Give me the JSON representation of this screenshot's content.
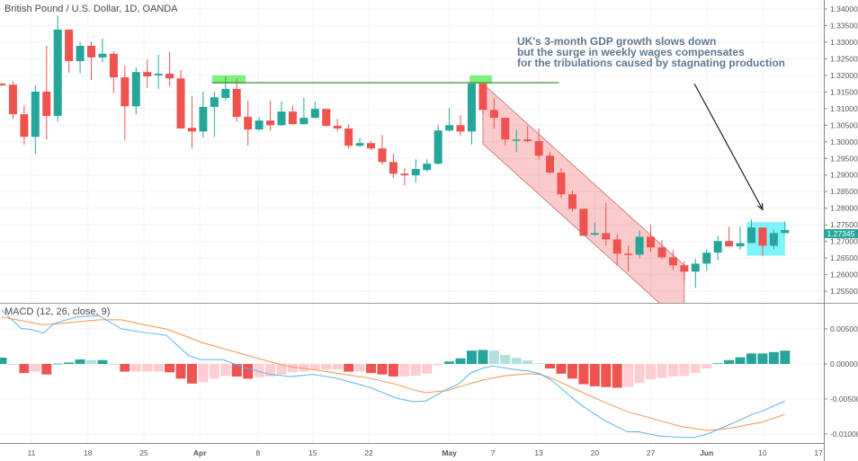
{
  "header": {
    "title": "British Pound / U.S. Dollar, 1D, OANDA"
  },
  "annotation_text": [
    "UK's 3-month GDP growth slows down",
    "but the surge in weekly wages compensates",
    "for the tribulations caused by stagnating production"
  ],
  "colors": {
    "up": "#26a69a",
    "down": "#ef5350",
    "up_light": "#b2dfdb",
    "down_light": "#ffcdd2",
    "macd": "#5fb2ea",
    "signal": "#f5924e",
    "grid": "#f0f3fa",
    "resistance": "#4a8f3a",
    "highlight_green": "#7cf27c",
    "highlight_cyan": "#7ff3fa",
    "channel": "#ef5350"
  },
  "chart_data": [
    {
      "type": "candlestick",
      "title": "British Pound / U.S. Dollar, 1D, OANDA",
      "ylim": [
        1.2515,
        1.3427
      ],
      "price_ticks": [
        "1.34000",
        "1.33500",
        "1.33000",
        "1.32500",
        "1.32000",
        "1.31500",
        "1.31000",
        "1.30500",
        "1.30000",
        "1.29500",
        "1.29000",
        "1.28500",
        "1.28000",
        "1.27500",
        "1.27000",
        "1.26500",
        "1.26000",
        "1.25500"
      ],
      "last_price": "1.27345",
      "x_ticks": [
        {
          "label": "11",
          "bar": 2.65
        },
        {
          "label": "18",
          "bar": 7.7
        },
        {
          "label": "25",
          "bar": 12.7
        },
        {
          "label": "Apr",
          "bar": 17.7,
          "bold": true
        },
        {
          "label": "8",
          "bar": 22.9
        },
        {
          "label": "15",
          "bar": 27.8
        },
        {
          "label": "22",
          "bar": 32.8
        },
        {
          "label": "May",
          "bar": 40,
          "bold": true
        },
        {
          "label": "7",
          "bar": 43.9
        },
        {
          "label": "13",
          "bar": 48
        },
        {
          "label": "20",
          "bar": 53
        },
        {
          "label": "27",
          "bar": 58
        },
        {
          "label": "Jun",
          "bar": 63,
          "bold": true
        },
        {
          "label": "10",
          "bar": 68
        },
        {
          "label": "17",
          "bar": 73
        }
      ],
      "ohlc": [
        [
          1.3175,
          1.3178,
          1.3168,
          1.317
        ],
        [
          1.3172,
          1.3183,
          1.3069,
          1.3083
        ],
        [
          1.3083,
          1.311,
          1.2991,
          1.3015
        ],
        [
          1.3015,
          1.317,
          1.2964,
          1.3151
        ],
        [
          1.3151,
          1.3289,
          1.3007,
          1.3078
        ],
        [
          1.3078,
          1.3381,
          1.3061,
          1.3338
        ],
        [
          1.3338,
          1.3338,
          1.3208,
          1.3243
        ],
        [
          1.3243,
          1.33,
          1.3205,
          1.3289
        ],
        [
          1.3289,
          1.3302,
          1.3186,
          1.3254
        ],
        [
          1.3254,
          1.3311,
          1.324,
          1.3265
        ],
        [
          1.3265,
          1.3273,
          1.3148,
          1.3194
        ],
        [
          1.3194,
          1.3229,
          1.3004,
          1.3107
        ],
        [
          1.3107,
          1.3224,
          1.3083,
          1.321
        ],
        [
          1.321,
          1.3248,
          1.3162,
          1.3197
        ],
        [
          1.32,
          1.3262,
          1.3159,
          1.3205
        ],
        [
          1.3205,
          1.327,
          1.3167,
          1.3191
        ],
        [
          1.3191,
          1.3216,
          1.304,
          1.304
        ],
        [
          1.3042,
          1.3137,
          1.298,
          1.3031
        ],
        [
          1.3031,
          1.3151,
          1.3012,
          1.3105
        ],
        [
          1.3105,
          1.3151,
          1.3015,
          1.3134
        ],
        [
          1.3132,
          1.3197,
          1.3124,
          1.3159
        ],
        [
          1.3159,
          1.3191,
          1.3061,
          1.3075
        ],
        [
          1.3075,
          1.3124,
          1.2988,
          1.3037
        ],
        [
          1.3037,
          1.3075,
          1.3034,
          1.3064
        ],
        [
          1.3064,
          1.3124,
          1.3034,
          1.305
        ],
        [
          1.305,
          1.3121,
          1.3048,
          1.3091
        ],
        [
          1.3091,
          1.311,
          1.3053,
          1.3053
        ],
        [
          1.3053,
          1.3132,
          1.3053,
          1.3072
        ],
        [
          1.3072,
          1.3121,
          1.3072,
          1.3099
        ],
        [
          1.3099,
          1.3099,
          1.3045,
          1.3048
        ],
        [
          1.3048,
          1.3069,
          1.3031,
          1.304
        ],
        [
          1.304,
          1.3053,
          1.298,
          1.2988
        ],
        [
          1.2988,
          1.3012,
          1.2985,
          1.2996
        ],
        [
          1.2996,
          1.3002,
          1.2975,
          1.298
        ],
        [
          1.298,
          1.3021,
          1.2931,
          1.2939
        ],
        [
          1.2939,
          1.2964,
          1.2891,
          1.2904
        ],
        [
          1.2904,
          1.292,
          1.2869,
          1.2899
        ],
        [
          1.2899,
          1.2947,
          1.2877,
          1.2918
        ],
        [
          1.2915,
          1.2947,
          1.291,
          1.2934
        ],
        [
          1.2934,
          1.305,
          1.2931,
          1.3034
        ],
        [
          1.3034,
          1.3102,
          1.3031,
          1.305
        ],
        [
          1.305,
          1.308,
          1.3018,
          1.3031
        ],
        [
          1.3031,
          1.3175,
          1.2991,
          1.3175
        ],
        [
          1.3175,
          1.3175,
          1.3083,
          1.3096
        ],
        [
          1.3096,
          1.3132,
          1.304,
          1.3072
        ],
        [
          1.3072,
          1.3072,
          1.2988,
          1.3007
        ],
        [
          1.3004,
          1.3037,
          1.2969,
          1.3007
        ],
        [
          1.3007,
          1.3048,
          1.2999,
          1.3002
        ],
        [
          1.3002,
          1.304,
          1.2945,
          1.2958
        ],
        [
          1.2958,
          1.2969,
          1.2904,
          1.2907
        ],
        [
          1.2907,
          1.292,
          1.2831,
          1.2842
        ],
        [
          1.2842,
          1.2853,
          1.279,
          1.2798
        ],
        [
          1.2798,
          1.2798,
          1.2717,
          1.2717
        ],
        [
          1.272,
          1.2758,
          1.2717,
          1.2725
        ],
        [
          1.2725,
          1.2817,
          1.2687,
          1.2706
        ],
        [
          1.2706,
          1.2722,
          1.2628,
          1.2663
        ],
        [
          1.2663,
          1.2687,
          1.2609,
          1.266
        ],
        [
          1.266,
          1.2733,
          1.2649,
          1.2714
        ],
        [
          1.2714,
          1.275,
          1.2668,
          1.2682
        ],
        [
          1.2682,
          1.2704,
          1.2647,
          1.2652
        ],
        [
          1.2652,
          1.2674,
          1.2614,
          1.2628
        ],
        [
          1.2628,
          1.2641,
          1.2582,
          1.2609
        ],
        [
          1.2609,
          1.2647,
          1.256,
          1.2633
        ],
        [
          1.2633,
          1.2676,
          1.2611,
          1.2666
        ],
        [
          1.2666,
          1.2717,
          1.2644,
          1.2701
        ],
        [
          1.2701,
          1.2744,
          1.2685,
          1.2685
        ],
        [
          1.2685,
          1.2744,
          1.2674,
          1.2695
        ],
        [
          1.2695,
          1.2766,
          1.2695,
          1.2742
        ],
        [
          1.2742,
          1.2742,
          1.2657,
          1.2687
        ],
        [
          1.2687,
          1.2736,
          1.2676,
          1.2725
        ],
        [
          1.2725,
          1.276,
          1.2725,
          1.27345
        ]
      ],
      "drawings": {
        "resistance_line": {
          "from_bar": 18.8,
          "to_bar": 49.8,
          "price": 1.3178
        },
        "green_boxes": [
          {
            "from_bar": 18.8,
            "to_bar": 21.8,
            "top": 1.32,
            "bottom": 1.3175
          },
          {
            "from_bar": 41.8,
            "to_bar": 43.8,
            "top": 1.32,
            "bottom": 1.3175
          }
        ],
        "channel": {
          "start_bar": 43,
          "end_bar": 61,
          "upper_start": 1.3175,
          "upper_end": 1.2628,
          "lower_start": 1.2994,
          "lower_end": 1.2447
        },
        "cyan_box": {
          "from_bar": 66.6,
          "to_bar": 70.0,
          "top": 1.2758,
          "bottom": 1.2657
        },
        "arrow": {
          "from_bar": 61.9,
          "from_price": 1.3175,
          "to_bar": 68,
          "to_price": 1.2796
        }
      }
    },
    {
      "type": "macd",
      "title": "MACD (12, 26, close, 9)",
      "ylim": [
        -0.0113,
        0.0086
      ],
      "ticks": [
        "0.00500",
        "0.00000",
        "-0.00500",
        "-0.01000"
      ],
      "macd_line": [
        [
          0,
          0.0077
        ],
        [
          1.7,
          0.0051
        ],
        [
          2.7,
          0.0049
        ],
        [
          3.7,
          0.0044
        ],
        [
          4.7,
          0.0058
        ],
        [
          6.7,
          0.0067
        ],
        [
          8.7,
          0.0069
        ],
        [
          10.7,
          0.005
        ],
        [
          12.7,
          0.0045
        ],
        [
          14.7,
          0.0041
        ],
        [
          16.7,
          0.0012
        ],
        [
          17.8,
          0.0006
        ],
        [
          19.8,
          0.0006
        ],
        [
          21.8,
          -0.0006
        ],
        [
          24,
          -0.0015
        ],
        [
          25.8,
          -0.0018
        ],
        [
          27.8,
          -0.0015
        ],
        [
          29.8,
          -0.002
        ],
        [
          32.8,
          -0.0033
        ],
        [
          35.3,
          -0.0049
        ],
        [
          36.8,
          -0.0054
        ],
        [
          37.9,
          -0.0053
        ],
        [
          39.8,
          -0.0036
        ],
        [
          40.8,
          -0.0029
        ],
        [
          41.9,
          -0.0013
        ],
        [
          43,
          -0.0006
        ],
        [
          43.9,
          -0.0003
        ],
        [
          45.9,
          -0.0008
        ],
        [
          47,
          -0.001
        ],
        [
          48.1,
          -0.0014
        ],
        [
          49.1,
          -0.0023
        ],
        [
          51.8,
          -0.0059
        ],
        [
          53.9,
          -0.0081
        ],
        [
          55.9,
          -0.0097
        ],
        [
          56.9,
          -0.0097
        ],
        [
          58.8,
          -0.0103
        ],
        [
          60.9,
          -0.0105
        ],
        [
          61.9,
          -0.0105
        ],
        [
          63.1,
          -0.01
        ],
        [
          65,
          -0.0087
        ],
        [
          67.1,
          -0.0072
        ],
        [
          68,
          -0.0067
        ],
        [
          70,
          -0.0053
        ]
      ],
      "signal_line": [
        [
          0,
          0.0067
        ],
        [
          3.7,
          0.0056
        ],
        [
          4.7,
          0.0057
        ],
        [
          8.7,
          0.0063
        ],
        [
          10.7,
          0.0063
        ],
        [
          12.7,
          0.0056
        ],
        [
          14.7,
          0.005
        ],
        [
          16.7,
          0.0038
        ],
        [
          17.8,
          0.0031
        ],
        [
          19.8,
          0.0022
        ],
        [
          21.8,
          0.0013
        ],
        [
          24,
          0.0003
        ],
        [
          25.8,
          -0.0004
        ],
        [
          27.8,
          -0.0008
        ],
        [
          29.8,
          -0.0013
        ],
        [
          32.8,
          -0.002
        ],
        [
          35.2,
          -0.0029
        ],
        [
          36.8,
          -0.0037
        ],
        [
          37.9,
          -0.0041
        ],
        [
          39.8,
          -0.0038
        ],
        [
          40.8,
          -0.0033
        ],
        [
          43,
          -0.0023
        ],
        [
          44.9,
          -0.0017
        ],
        [
          47,
          -0.0014
        ],
        [
          48.1,
          -0.0015
        ],
        [
          49.1,
          -0.002
        ],
        [
          51.8,
          -0.004
        ],
        [
          53.9,
          -0.0055
        ],
        [
          55.9,
          -0.0068
        ],
        [
          58.8,
          -0.0081
        ],
        [
          60.9,
          -0.009
        ],
        [
          63.1,
          -0.0095
        ],
        [
          65,
          -0.0092
        ],
        [
          68,
          -0.0083
        ],
        [
          70,
          -0.0072
        ]
      ],
      "histogram": [
        0.0009,
        0.0,
        -0.0013,
        -0.0011,
        -0.0015,
        5e-05,
        0.0002,
        0.00065,
        0.00055,
        0.00055,
        0.0,
        -0.0011,
        -0.0011,
        -0.0011,
        -0.0011,
        -0.0012,
        -0.0021,
        -0.0028,
        -0.0026,
        -0.0021,
        -0.0017,
        -0.0018,
        -0.0021,
        -0.0019,
        -0.0018,
        -0.0015,
        -0.0012,
        -0.0011,
        -0.0008,
        -0.0008,
        -0.0008,
        -0.0011,
        -0.0011,
        -0.0013,
        -0.0015,
        -0.0018,
        -0.0018,
        -0.0017,
        -0.0014,
        -0.0002,
        0.00035,
        0.0008,
        0.0019,
        0.002,
        0.0019,
        0.0013,
        0.00085,
        0.0005,
        0.0001,
        -0.00065,
        -0.0014,
        -0.0021,
        -0.0029,
        -0.0032,
        -0.0033,
        -0.0034,
        -0.0033,
        -0.0027,
        -0.0022,
        -0.002,
        -0.0018,
        -0.0017,
        -0.0013,
        -0.00065,
        0.0001,
        0.00055,
        0.00095,
        0.0015,
        0.0015,
        0.0017,
        0.0019
      ]
    }
  ]
}
